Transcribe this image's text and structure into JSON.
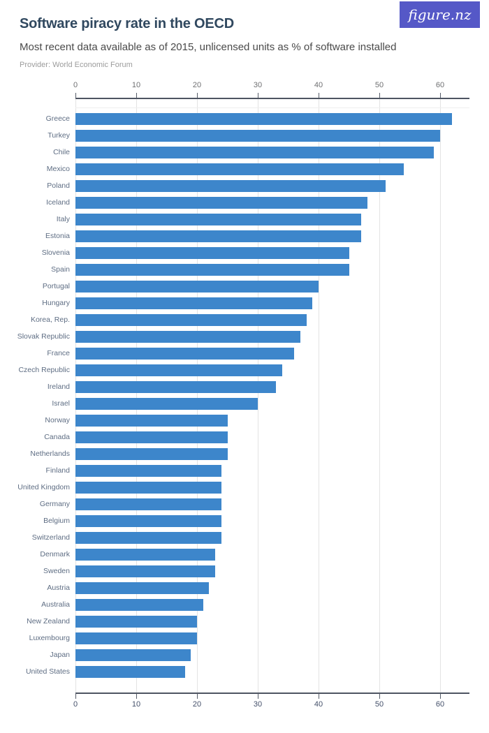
{
  "logo": {
    "text": "figure.nz",
    "bg_color": "#5558c7"
  },
  "header": {
    "title": "Software piracy rate in the OECD",
    "subtitle": "Most recent data available as of 2015, unlicensed units as % of software installed",
    "provider": "Provider: World Economic Forum"
  },
  "chart_data": {
    "type": "bar",
    "orientation": "horizontal",
    "title": "Software piracy rate in the OECD",
    "subtitle": "Most recent data available as of 2015, unlicensed units as % of software installed",
    "provider": "Provider: World Economic Forum",
    "categories": [
      "Greece",
      "Turkey",
      "Chile",
      "Mexico",
      "Poland",
      "Iceland",
      "Italy",
      "Estonia",
      "Slovenia",
      "Spain",
      "Portugal",
      "Hungary",
      "Korea, Rep.",
      "Slovak Republic",
      "France",
      "Czech Republic",
      "Ireland",
      "Israel",
      "Norway",
      "Canada",
      "Netherlands",
      "Finland",
      "United Kingdom",
      "Germany",
      "Belgium",
      "Switzerland",
      "Denmark",
      "Sweden",
      "Austria",
      "Australia",
      "New Zealand",
      "Luxembourg",
      "Japan",
      "United States"
    ],
    "values": [
      62,
      60,
      59,
      54,
      51,
      48,
      47,
      47,
      45,
      45,
      40,
      39,
      38,
      37,
      36,
      34,
      33,
      30,
      25,
      25,
      25,
      24,
      24,
      24,
      24,
      24,
      23,
      23,
      22,
      21,
      20,
      20,
      19,
      18
    ],
    "x_ticks": [
      0,
      10,
      20,
      30,
      40,
      50,
      60
    ],
    "xlim": [
      0,
      65
    ],
    "xlabel": "",
    "ylabel": "",
    "grid": true,
    "legend": false,
    "axes_mirrored": true,
    "bar_color": "#3d86cb"
  }
}
